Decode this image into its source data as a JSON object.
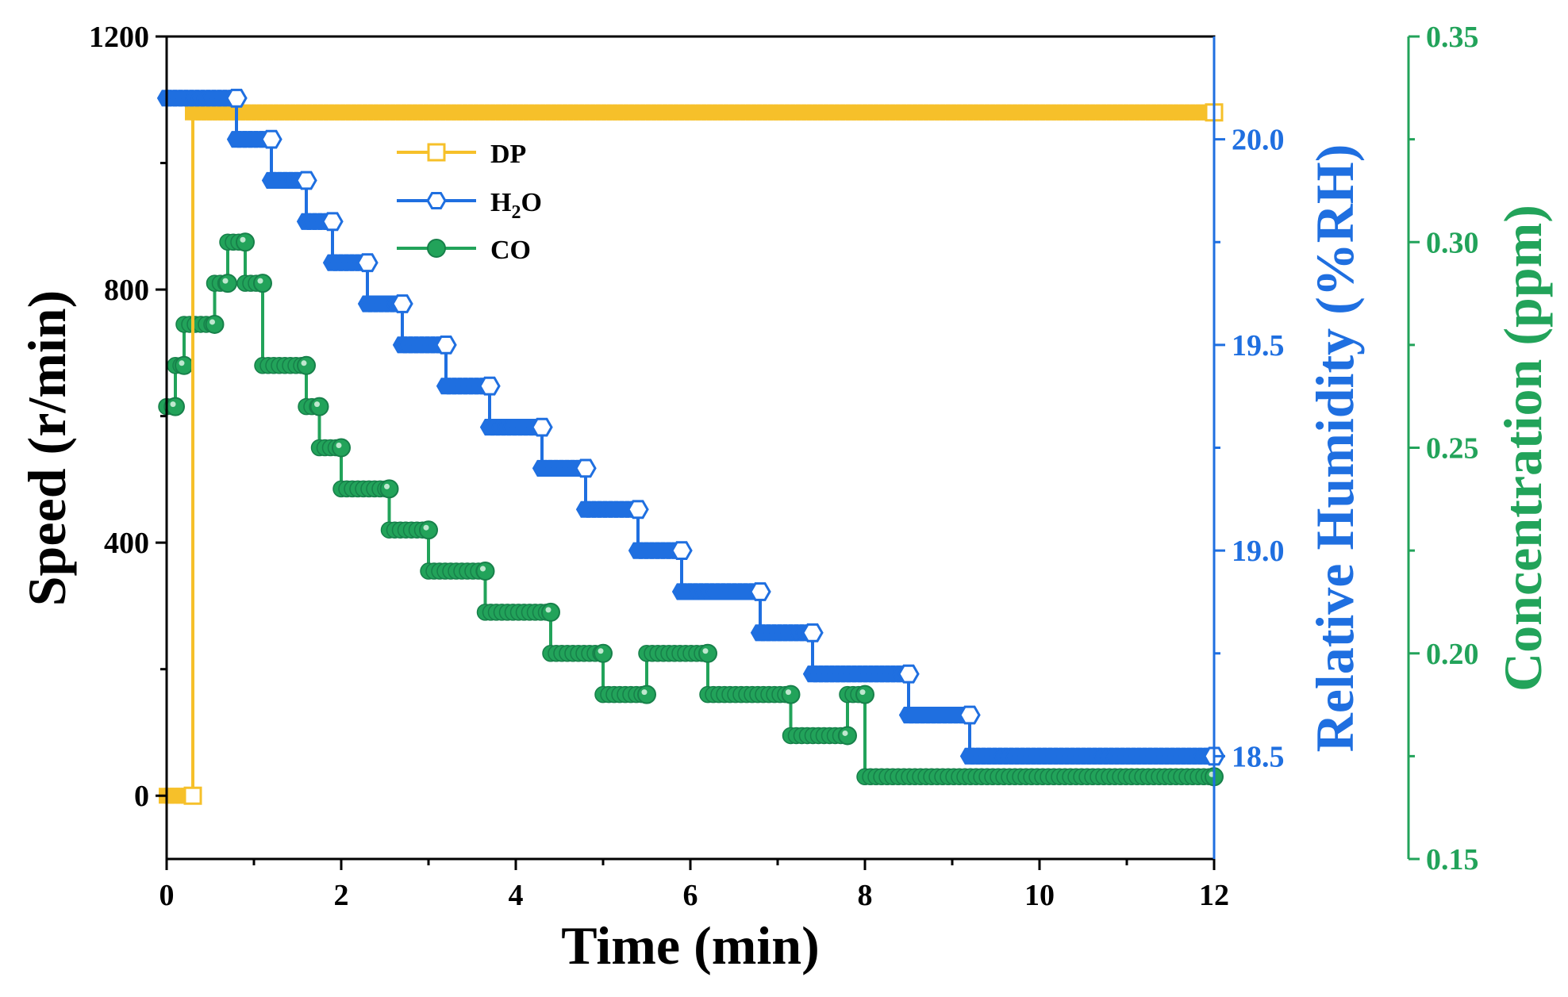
{
  "chart_data": {
    "type": "line",
    "title": "",
    "xlabel": "Time (min)",
    "xlim": [
      0,
      12
    ],
    "x_ticks": [
      "0",
      "2",
      "4",
      "6",
      "8",
      "10",
      "12"
    ],
    "grid": false,
    "legend_position": "upper-left-inside",
    "axes": {
      "left": {
        "label": "Speed (r/min)",
        "ylim": [
          -100,
          1200
        ],
        "ticks": [
          "0",
          "400",
          "800",
          "1200"
        ],
        "color": "#000000"
      },
      "right1": {
        "label": "Relative Humidity (%RH)",
        "ylim": [
          18.25,
          20.25
        ],
        "ticks": [
          "18.5",
          "19.0",
          "19.5",
          "20.0"
        ],
        "color": "#1f6fe0"
      },
      "right2": {
        "label": "Concentration (ppm)",
        "ylim": [
          0.15,
          0.35
        ],
        "ticks": [
          "0.15",
          "0.20",
          "0.25",
          "0.30",
          "0.35"
        ],
        "color": "#22a35a"
      }
    },
    "series": [
      {
        "name": "DP",
        "legend_label": "DP",
        "color": "#f6c02a",
        "axis": "left",
        "marker": "open-square",
        "x": [
          0,
          0.3,
          0.3,
          12
        ],
        "y": [
          0,
          0,
          1080,
          1080
        ]
      },
      {
        "name": "H2O",
        "legend_label": "H",
        "legend_sub": "2",
        "legend_tail": "O",
        "color": "#1f6fe0",
        "axis": "right1",
        "marker": "open-hexagon",
        "x": [
          0,
          0.8,
          0.8,
          1.2,
          1.2,
          1.6,
          1.6,
          1.9,
          1.9,
          2.3,
          2.3,
          2.7,
          2.7,
          3.2,
          3.2,
          3.7,
          3.7,
          4.3,
          4.3,
          4.8,
          4.8,
          5.4,
          5.4,
          5.9,
          5.9,
          6.8,
          6.8,
          7.4,
          7.4,
          8.5,
          8.5,
          9.2,
          9.2,
          12
        ],
        "y": [
          20.1,
          20.1,
          20.0,
          20.0,
          19.9,
          19.9,
          19.8,
          19.8,
          19.7,
          19.7,
          19.6,
          19.6,
          19.5,
          19.5,
          19.4,
          19.4,
          19.3,
          19.3,
          19.2,
          19.2,
          19.1,
          19.1,
          19.0,
          19.0,
          18.9,
          18.9,
          18.8,
          18.8,
          18.7,
          18.7,
          18.6,
          18.6,
          18.5,
          18.5
        ]
      },
      {
        "name": "CO",
        "legend_label": "CO",
        "color": "#22a35a",
        "axis": "right2",
        "marker": "filled-circle",
        "x": [
          0,
          0.1,
          0.1,
          0.2,
          0.2,
          0.55,
          0.55,
          0.7,
          0.7,
          0.9,
          0.9,
          1.1,
          1.1,
          1.6,
          1.6,
          1.75,
          1.75,
          2.0,
          2.0,
          2.55,
          2.55,
          3.0,
          3.0,
          3.65,
          3.65,
          4.4,
          4.4,
          5.0,
          5.0,
          5.5,
          5.5,
          6.2,
          6.2,
          7.15,
          7.15,
          7.8,
          7.8,
          8.0,
          8.0,
          12
        ],
        "y": [
          0.26,
          0.26,
          0.27,
          0.27,
          0.28,
          0.28,
          0.29,
          0.29,
          0.3,
          0.3,
          0.29,
          0.29,
          0.27,
          0.27,
          0.26,
          0.26,
          0.25,
          0.25,
          0.24,
          0.24,
          0.23,
          0.23,
          0.22,
          0.22,
          0.21,
          0.21,
          0.2,
          0.2,
          0.19,
          0.19,
          0.2,
          0.2,
          0.19,
          0.19,
          0.18,
          0.18,
          0.19,
          0.19,
          0.17,
          0.17
        ]
      }
    ]
  }
}
